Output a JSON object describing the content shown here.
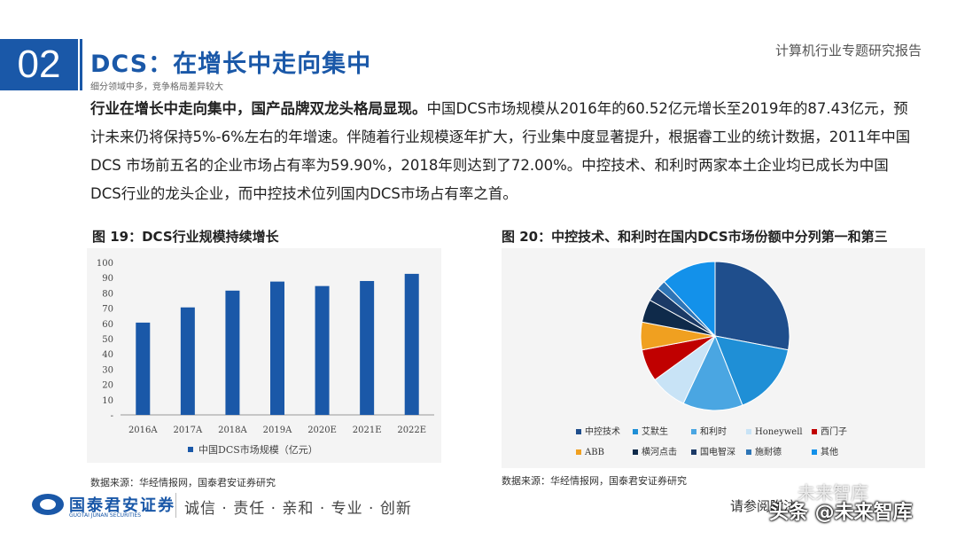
{
  "header": {
    "section_number": "02",
    "title": "DCS：在增长中走向集中",
    "subtitle": "细分领域中多，竞争格局差异较大",
    "report_name": "计算机行业专题研究报告"
  },
  "body": {
    "lead": "行业在增长中走向集中，国产品牌双龙头格局显现。",
    "text": "中国DCS市场规模从2016年的60.52亿元增长至2019年的87.43亿元，预计未来仍将保持5%-6%左右的年增速。伴随着行业规模逐年扩大，行业集中度显著提升，根据睿工业的统计数据，2011年中国DCS 市场前五名的企业市场占有率为59.90%，2018年则达到了72.00%。中控技术、和利时两家本土企业均已成长为中国DCS行业的龙头企业，而中控技术位列国内DCS市场占有率之首。"
  },
  "figure19": {
    "title": "图 19：DCS行业规模持续增长",
    "source": "数据来源：华经情报网，国泰君安证券研究"
  },
  "figure20": {
    "title": "图 20：中控技术、和利时在国内DCS市场份额中分列第一和第三",
    "source": "数据来源：华经情报网，国泰君安证券研究"
  },
  "chart_data": [
    {
      "type": "bar",
      "categories": [
        "2016A",
        "2017A",
        "2018A",
        "2019A",
        "2020E",
        "2021E",
        "2022E"
      ],
      "series": [
        {
          "name": "中国DCS市场规模（亿元）",
          "values": [
            60.52,
            70.5,
            81.5,
            87.43,
            84.5,
            87.8,
            92.5
          ],
          "color": "#1a58a8"
        }
      ],
      "yticks": [
        "100",
        "90",
        "80",
        "70",
        "60",
        "50",
        "40",
        "30",
        "20",
        "10",
        "-"
      ],
      "ylim": [
        0,
        100
      ]
    },
    {
      "type": "pie",
      "labels": [
        "中控技术",
        "艾默生",
        "和利时",
        "Honeywell",
        "西门子",
        "ABB",
        "横河点击",
        "国电智深",
        "施耐德",
        "其他"
      ],
      "values": [
        28,
        16,
        13,
        8,
        7,
        6,
        5,
        3,
        2,
        12
      ],
      "colors": [
        "#1f4e8c",
        "#1f8fd6",
        "#4aa6e2",
        "#c8e3f6",
        "#c00000",
        "#f0a020",
        "#0f2a4a",
        "#1b3a66",
        "#2e75b6",
        "#1391ea"
      ]
    }
  ],
  "footer": {
    "company_cn": "国泰君安证券",
    "company_en": "GUOTAI JUNAN SECURITIES",
    "motto": "诚信 · 责任 · 亲和 · 专业 · 创新",
    "note": "请参阅附注",
    "watermark": "头条 @未来智库",
    "watermark_top": "未来智库"
  }
}
